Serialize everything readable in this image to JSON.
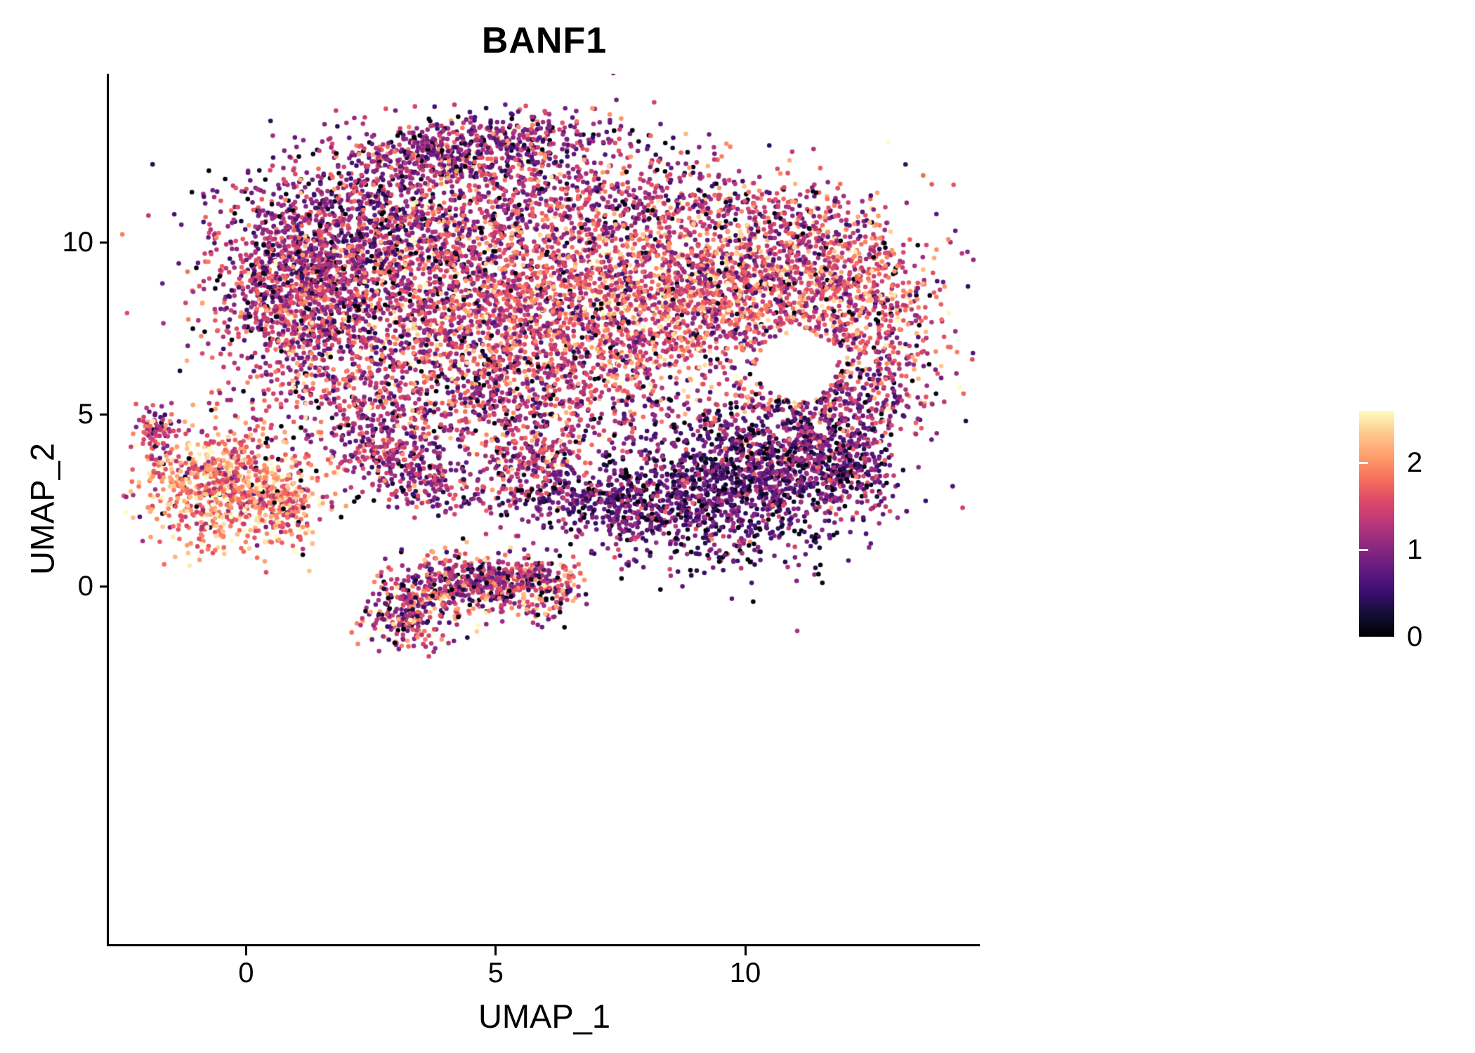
{
  "chart_data": {
    "type": "scatter",
    "title": "BANF1",
    "xlabel": "UMAP_1",
    "ylabel": "UMAP_2",
    "xlim": [
      -2.75,
      14.7
    ],
    "ylim": [
      -10.4,
      14.9
    ],
    "x_ticks": [
      0,
      5,
      10
    ],
    "y_ticks": [
      0,
      5,
      10
    ],
    "grid": false,
    "background": "#ffffff",
    "axis_color": "#000000",
    "legend": {
      "position": "right",
      "labels": [
        "2",
        "1",
        "0"
      ],
      "values": [
        2,
        1,
        0
      ]
    },
    "color_scale": {
      "name": "magma",
      "domain": [
        0,
        2.6
      ],
      "stops": [
        "#000004",
        "#140e36",
        "#3b0f70",
        "#641a80",
        "#8c2981",
        "#b73779",
        "#de4968",
        "#f7705c",
        "#fe9f6d",
        "#fec98d",
        "#fcfdbf"
      ]
    },
    "points": {
      "radius_px": 3.3,
      "seed": 42,
      "approx_total": 14050
    },
    "clusters": [
      {
        "name": "top-band",
        "n": 650,
        "cx": 4.4,
        "cy": 12.7,
        "sx": 1.45,
        "sy": 0.5,
        "rot": 8,
        "mean": 1.05,
        "sd": 0.45,
        "zero": 0.07
      },
      {
        "name": "top-sparse",
        "n": 320,
        "cx": 5.3,
        "cy": 11.5,
        "sx": 1.7,
        "sy": 0.8,
        "rot": 0,
        "mean": 1.2,
        "sd": 0.5,
        "zero": 0.05
      },
      {
        "name": "upper-left",
        "n": 850,
        "cx": 2.3,
        "cy": 10.3,
        "sx": 1.4,
        "sy": 0.95,
        "rot": 0,
        "mean": 1.05,
        "sd": 0.5,
        "zero": 0.06
      },
      {
        "name": "left-mid",
        "n": 900,
        "cx": 1.15,
        "cy": 8.4,
        "sx": 0.85,
        "sy": 1.25,
        "rot": 0,
        "mean": 1.25,
        "sd": 0.5,
        "zero": 0.05
      },
      {
        "name": "center",
        "n": 1700,
        "cx": 4.3,
        "cy": 8.2,
        "sx": 2.1,
        "sy": 1.7,
        "rot": 0,
        "mean": 1.4,
        "sd": 0.5,
        "zero": 0.05
      },
      {
        "name": "center-right",
        "n": 1750,
        "cx": 7.9,
        "cy": 8.4,
        "sx": 2.0,
        "sy": 1.5,
        "rot": 0,
        "mean": 1.62,
        "sd": 0.5,
        "zero": 0.04
      },
      {
        "name": "right",
        "n": 800,
        "cx": 10.6,
        "cy": 9.0,
        "sx": 1.4,
        "sy": 1.1,
        "rot": 0,
        "mean": 1.5,
        "sd": 0.5,
        "zero": 0.05
      },
      {
        "name": "upper-right-shoulder",
        "n": 280,
        "cx": 7.9,
        "cy": 11.2,
        "sx": 1.3,
        "sy": 0.7,
        "rot": 0,
        "mean": 1.25,
        "sd": 0.5,
        "zero": 0.06
      },
      {
        "name": "top-right-corner",
        "n": 160,
        "cx": 11.2,
        "cy": 10.6,
        "sx": 0.8,
        "sy": 0.6,
        "rot": 0,
        "mean": 1.35,
        "sd": 0.5,
        "zero": 0.05
      },
      {
        "name": "right-arm",
        "n": 450,
        "cx": 12.5,
        "cy": 7.6,
        "sx": 0.75,
        "sy": 1.4,
        "rot": 0,
        "mean": 1.55,
        "sd": 0.5,
        "zero": 0.05
      },
      {
        "name": "right-arm-low",
        "n": 320,
        "cx": 11.9,
        "cy": 5.3,
        "sx": 0.9,
        "sy": 0.8,
        "rot": 0,
        "mean": 1.1,
        "sd": 0.5,
        "zero": 0.06
      },
      {
        "name": "mid-low-band",
        "n": 820,
        "cx": 4.6,
        "cy": 5.7,
        "sx": 2.3,
        "sy": 1.0,
        "rot": 0,
        "mean": 1.3,
        "sd": 0.5,
        "zero": 0.05
      },
      {
        "name": "chain-a",
        "n": 170,
        "cx": 2.7,
        "cy": 4.0,
        "sx": 0.5,
        "sy": 0.5,
        "rot": 0,
        "mean": 1.15,
        "sd": 0.45,
        "zero": 0.05
      },
      {
        "name": "chain-b",
        "n": 150,
        "cx": 3.6,
        "cy": 3.2,
        "sx": 0.5,
        "sy": 0.4,
        "rot": 0,
        "mean": 1.1,
        "sd": 0.45,
        "zero": 0.06
      },
      {
        "name": "mid-clump",
        "n": 220,
        "cx": 5.7,
        "cy": 3.6,
        "sx": 0.55,
        "sy": 0.45,
        "rot": 0,
        "mean": 1.35,
        "sd": 0.5,
        "zero": 0.05
      },
      {
        "name": "sparse-row",
        "n": 180,
        "cx": 5.6,
        "cy": 2.6,
        "sx": 1.6,
        "sy": 0.25,
        "rot": 0,
        "mean": 1.0,
        "sd": 0.5,
        "zero": 0.08
      },
      {
        "name": "row-to-br",
        "n": 170,
        "cx": 7.3,
        "cy": 2.2,
        "sx": 0.9,
        "sy": 0.45,
        "rot": 0,
        "mean": 0.9,
        "sd": 0.45,
        "zero": 0.1
      },
      {
        "name": "bottom-right",
        "n": 1250,
        "cx": 9.4,
        "cy": 2.7,
        "sx": 1.4,
        "sy": 1.0,
        "rot": 0,
        "mean": 0.72,
        "sd": 0.4,
        "zero": 0.1
      },
      {
        "name": "bottom-right-upper",
        "n": 520,
        "cx": 10.9,
        "cy": 4.1,
        "sx": 1.0,
        "sy": 0.9,
        "rot": 0,
        "mean": 0.85,
        "sd": 0.45,
        "zero": 0.08
      },
      {
        "name": "bottom-right-edge",
        "n": 200,
        "cx": 11.9,
        "cy": 3.4,
        "sx": 0.5,
        "sy": 0.7,
        "rot": 0,
        "mean": 0.9,
        "sd": 0.45,
        "zero": 0.08
      },
      {
        "name": "left-cluster",
        "n": 760,
        "cx": -0.4,
        "cy": 2.9,
        "sx": 0.8,
        "sy": 0.85,
        "rot": 0,
        "mean": 1.9,
        "sd": 0.45,
        "zero": 0.03
      },
      {
        "name": "left-cluster-ext",
        "n": 180,
        "cx": 0.7,
        "cy": 2.4,
        "sx": 0.4,
        "sy": 0.5,
        "rot": 0,
        "mean": 1.8,
        "sd": 0.45,
        "zero": 0.03
      },
      {
        "name": "left-satellite",
        "n": 90,
        "cx": -1.8,
        "cy": 4.4,
        "sx": 0.2,
        "sy": 0.4,
        "rot": 0,
        "mean": 1.25,
        "sd": 0.5,
        "zero": 0.05
      },
      {
        "name": "bottom-a",
        "n": 280,
        "cx": 3.3,
        "cy": -0.7,
        "sx": 0.45,
        "sy": 0.55,
        "rot": -20,
        "mean": 1.3,
        "sd": 0.55,
        "zero": 0.05
      },
      {
        "name": "bottom-b",
        "n": 320,
        "cx": 4.4,
        "cy": 0.1,
        "sx": 0.65,
        "sy": 0.45,
        "rot": 0,
        "mean": 1.25,
        "sd": 0.55,
        "zero": 0.05
      },
      {
        "name": "bottom-c",
        "n": 300,
        "cx": 5.7,
        "cy": 0.0,
        "sx": 0.6,
        "sy": 0.45,
        "rot": 10,
        "mean": 1.35,
        "sd": 0.55,
        "zero": 0.05
      },
      {
        "name": "noise",
        "n": 260,
        "cx": 6.5,
        "cy": 8.3,
        "sx": 4.2,
        "sy": 2.9,
        "rot": 0,
        "mean": 1.2,
        "sd": 0.6,
        "zero": 0.08
      }
    ],
    "holes": [
      {
        "cx": 11.05,
        "cy": 6.4,
        "rx": 0.8,
        "ry": 1.0
      }
    ]
  }
}
